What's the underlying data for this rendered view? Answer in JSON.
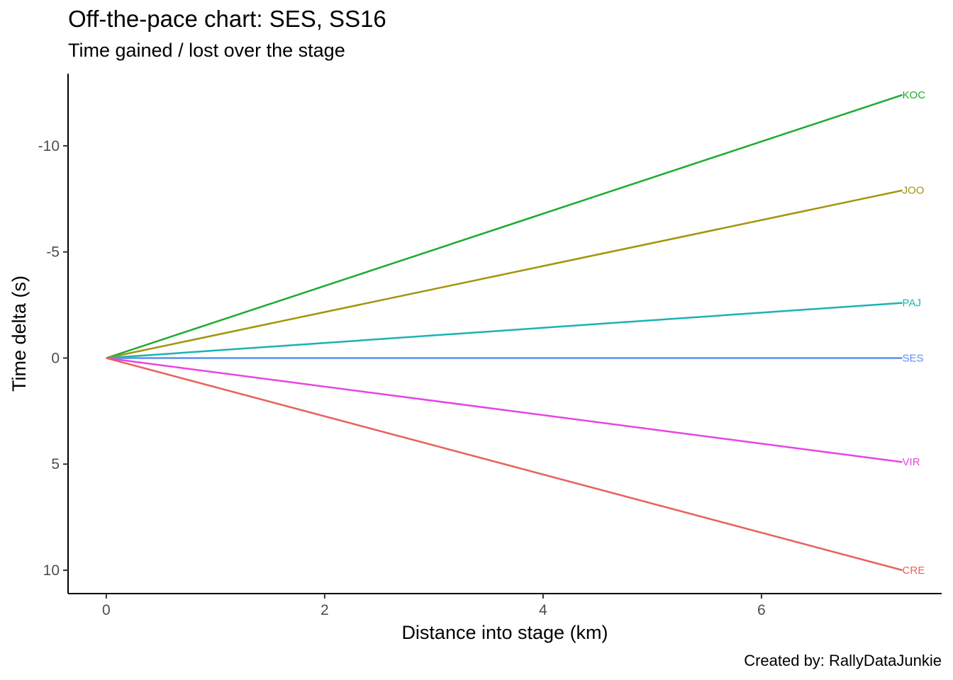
{
  "chart_data": {
    "type": "line",
    "title": "Off-the-pace chart: SES, SS16",
    "subtitle": "Time gained / lost over the stage",
    "caption": "Created by: RallyDataJunkie",
    "xlabel": "Distance into stage (km)",
    "ylabel": "Time delta (s)",
    "xlim": [
      -0.35,
      7.65
    ],
    "ylim": [
      -13.4,
      11.1
    ],
    "y_reversed": true,
    "x_ticks": [
      0,
      2,
      4,
      6
    ],
    "x_tick_labels": [
      "0",
      "2",
      "4",
      "6"
    ],
    "y_ticks": [
      -10,
      -5,
      0,
      5,
      10
    ],
    "y_tick_labels": [
      "-10",
      "-5",
      "0",
      "5",
      "10"
    ],
    "grid": false,
    "legend": "none (direct end labels)",
    "series": [
      {
        "name": "KOC",
        "color": "#1aac2d",
        "x": [
          0,
          7.29
        ],
        "y": [
          0,
          -12.4
        ]
      },
      {
        "name": "JOO",
        "color": "#a3940a",
        "x": [
          0,
          7.29
        ],
        "y": [
          0,
          -7.9
        ]
      },
      {
        "name": "PAJ",
        "color": "#1bb3b0",
        "x": [
          0,
          7.29
        ],
        "y": [
          0,
          -2.6
        ]
      },
      {
        "name": "SES",
        "color": "#5b8ef2",
        "x": [
          0,
          7.29
        ],
        "y": [
          0,
          0
        ]
      },
      {
        "name": "VIR",
        "color": "#e844e1",
        "x": [
          0,
          7.29
        ],
        "y": [
          0,
          4.9
        ]
      },
      {
        "name": "CRE",
        "color": "#e8625a",
        "x": [
          0,
          7.29
        ],
        "y": [
          0,
          10.0
        ]
      }
    ]
  }
}
